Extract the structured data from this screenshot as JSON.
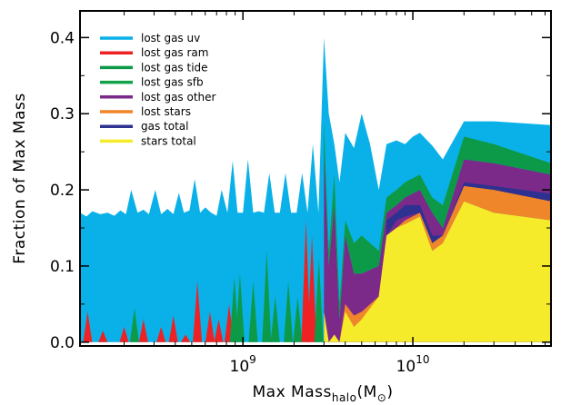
{
  "chart_data": {
    "type": "area",
    "xlabel": "Max Mass",
    "xlabel_sub": "halo",
    "xlabel_unit": "(M",
    "xlabel_unit_symbol": "⊙",
    "xlabel_unit_close": ")",
    "ylabel": "Fraction of Max Mass",
    "xscale": "log",
    "xlim": [
      110000000.0,
      65000000000.0
    ],
    "ylim": [
      -0.005,
      0.435
    ],
    "x_ticks": [
      {
        "value": 1000000000.0,
        "base": "10",
        "exp": "9"
      },
      {
        "value": 10000000000.0,
        "base": "10",
        "exp": "10"
      }
    ],
    "y_ticks": [
      {
        "value": 0.0,
        "label": "0.0"
      },
      {
        "value": 0.1,
        "label": "0.1"
      },
      {
        "value": 0.2,
        "label": "0.2"
      },
      {
        "value": 0.3,
        "label": "0.3"
      },
      {
        "value": 0.4,
        "label": "0.4"
      }
    ],
    "legend_position": "top-left",
    "series": [
      {
        "name": "lost gas uv",
        "color": "#0ab1e8"
      },
      {
        "name": "lost gas ram",
        "color": "#ee2224"
      },
      {
        "name": "lost gas tide",
        "color": "#0d9a48"
      },
      {
        "name": "lost gas sfb",
        "color": "#12a34a"
      },
      {
        "name": "lost gas other",
        "color": "#7b2a8a"
      },
      {
        "name": "lost stars",
        "color": "#f0862a"
      },
      {
        "name": "gas total",
        "color": "#2e3190"
      },
      {
        "name": "stars total",
        "color": "#f6eb2a"
      }
    ],
    "layers": {
      "lower": [
        {
          "series": "lost gas uv",
          "x": [
            110000000.0,
            120000000.0,
            130000000.0,
            145000000.0,
            160000000.0,
            175000000.0,
            190000000.0,
            205000000.0,
            220000000.0,
            240000000.0,
            260000000.0,
            280000000.0,
            305000000.0,
            330000000.0,
            360000000.0,
            390000000.0,
            420000000.0,
            450000000.0,
            485000000.0,
            520000000.0,
            560000000.0,
            600000000.0,
            650000000.0,
            700000000.0,
            750000000.0,
            810000000.0,
            870000000.0,
            930000000.0,
            1000000000.0,
            1070000000.0,
            1150000000.0,
            1240000000.0,
            1330000000.0,
            1430000000.0,
            1540000000.0,
            1650000000.0,
            1780000000.0,
            1920000000.0,
            2070000000.0,
            2230000000.0,
            2400000000.0,
            2580000000.0,
            2780000000.0,
            3000000000.0,
            3200000000.0,
            3450000000.0,
            3700000000.0,
            4000000000.0,
            4500000000.0,
            5000000000.0,
            5600000000.0,
            6300000000.0,
            7000000000.0,
            8000000000.0,
            9000000000.0,
            10000000000.0,
            11000000000.0,
            13000000000.0,
            15000000000.0,
            20000000000.0,
            30000000000.0,
            65000000000.0
          ],
          "y": [
            0.17,
            0.165,
            0.172,
            0.168,
            0.17,
            0.166,
            0.173,
            0.168,
            0.2,
            0.17,
            0.174,
            0.168,
            0.2,
            0.168,
            0.175,
            0.168,
            0.196,
            0.17,
            0.173,
            0.214,
            0.17,
            0.177,
            0.17,
            0.166,
            0.2,
            0.17,
            0.238,
            0.17,
            0.17,
            0.24,
            0.17,
            0.172,
            0.17,
            0.222,
            0.17,
            0.17,
            0.222,
            0.17,
            0.17,
            0.222,
            0.17,
            0.26,
            0.17,
            0.4,
            0.3,
            0.26,
            0.21,
            0.275,
            0.255,
            0.3,
            0.26,
            0.2,
            0.26,
            0.265,
            0.26,
            0.27,
            0.275,
            0.258,
            0.24,
            0.29,
            0.29,
            0.285
          ]
        }
      ]
    }
  }
}
